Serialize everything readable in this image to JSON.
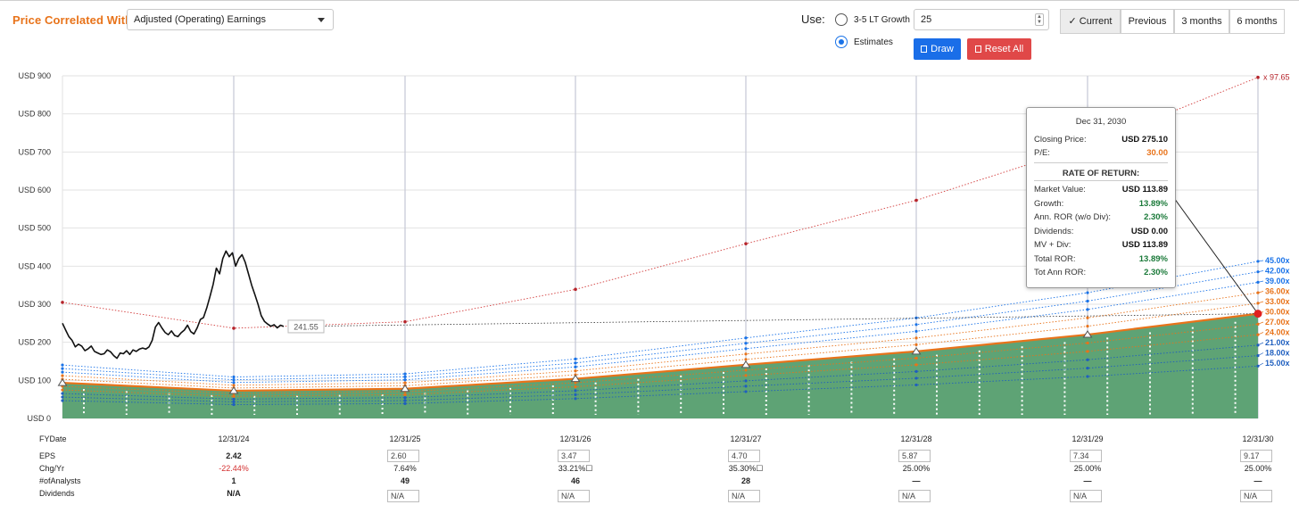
{
  "header": {
    "price_correlated_label": "Price Correlated With",
    "select_value": "Adjusted (Operating) Earnings",
    "use_label": "Use:",
    "radio_growth_label": "3-5 LT Growth",
    "radio_estimates_label": "Estimates",
    "input_value": "25",
    "draw_label": "Draw",
    "reset_label": "Reset All",
    "period_tabs": [
      {
        "label": "Current",
        "checkmark": "✓",
        "active": true
      },
      {
        "label": "Previous",
        "active": false
      },
      {
        "label": "3 months",
        "active": false
      },
      {
        "label": "6 months",
        "active": false
      }
    ]
  },
  "tooltip": {
    "date": "Dec 31, 2030",
    "closing_price_label": "Closing Price:",
    "closing_price_value": "USD 275.10",
    "pe_label": "P/E:",
    "pe_value": "30.00",
    "ror_heading": "RATE OF RETURN:",
    "rows": [
      {
        "label": "Market Value:",
        "value": "USD 113.89",
        "color": "#111111"
      },
      {
        "label": "Growth:",
        "value": "13.89%",
        "color": "#1b7a3a"
      },
      {
        "label": "Ann. ROR (w/o Div):",
        "value": "2.30%",
        "color": "#1b7a3a"
      },
      {
        "label": "Dividends:",
        "value": "USD 0.00",
        "color": "#111111"
      },
      {
        "label": "MV + Div:",
        "value": "USD 113.89",
        "color": "#111111"
      },
      {
        "label": "Total ROR:",
        "value": "13.89%",
        "color": "#1b7a3a"
      },
      {
        "label": "Tot Ann ROR:",
        "value": "2.30%",
        "color": "#1b7a3a"
      }
    ]
  },
  "table": {
    "row_labels": [
      "FYDate",
      "EPS",
      "Chg/Yr",
      "#ofAnalysts",
      "Dividends"
    ],
    "columns": [
      {
        "date": "12/31/24",
        "eps": "2.42",
        "eps_input": false,
        "chg": "-22.44%",
        "chg_neg": true,
        "chg_flag": "",
        "analysts": "1",
        "dividends": "N/A",
        "div_input": false
      },
      {
        "date": "12/31/25",
        "eps": "2.60",
        "eps_input": true,
        "chg": "7.64%",
        "chg_neg": false,
        "chg_flag": "",
        "analysts": "49",
        "dividends": "N/A",
        "div_input": true
      },
      {
        "date": "12/31/26",
        "eps": "3.47",
        "eps_input": true,
        "chg": "33.21%",
        "chg_neg": false,
        "chg_flag": "☐",
        "analysts": "46",
        "dividends": "N/A",
        "div_input": true
      },
      {
        "date": "12/31/27",
        "eps": "4.70",
        "eps_input": true,
        "chg": "35.30%",
        "chg_neg": false,
        "chg_flag": "☐",
        "analysts": "28",
        "dividends": "N/A",
        "div_input": true
      },
      {
        "date": "12/31/28",
        "eps": "5.87",
        "eps_input": true,
        "chg": "25.00%",
        "chg_neg": false,
        "chg_flag": "",
        "analysts": "—",
        "dividends": "N/A",
        "div_input": true
      },
      {
        "date": "12/31/29",
        "eps": "7.34",
        "eps_input": true,
        "chg": "25.00%",
        "chg_neg": false,
        "chg_flag": "",
        "analysts": "—",
        "dividends": "N/A",
        "div_input": true
      },
      {
        "date": "12/31/30",
        "eps": "9.17",
        "eps_input": true,
        "chg": "25.00%",
        "chg_neg": false,
        "chg_flag": "",
        "analysts": "—",
        "dividends": "N/A",
        "div_input": true
      }
    ]
  },
  "chart_data": {
    "type": "area",
    "x_dates": [
      "12/31/24",
      "12/31/25",
      "12/31/26",
      "12/31/27",
      "12/31/28",
      "12/31/29",
      "12/31/30"
    ],
    "x_start": "Dec 2023",
    "ylim": [
      0,
      900
    ],
    "y_ticks": [
      0,
      100,
      200,
      300,
      400,
      500,
      600,
      700,
      800,
      900
    ],
    "y_tick_labels": [
      "USD 0",
      "USD 100",
      "USD 200",
      "USD 300",
      "USD 400",
      "USD 500",
      "USD 600",
      "USD 700",
      "USD 800",
      "USD 900"
    ],
    "pe_multiples": [
      15,
      18,
      21,
      24,
      27,
      30,
      33,
      36,
      39,
      42,
      45
    ],
    "pe_labels": [
      "15.00x",
      "18.00x",
      "21.00x",
      "24.00x",
      "27.00x",
      "30.00x",
      "33.00x",
      "36.00x",
      "39.00x",
      "42.00x",
      "45.00x"
    ],
    "selected_pe": 30,
    "eps_series": [
      {
        "x": "Dec 2023",
        "eps": 3.12
      },
      {
        "x": "12/31/24",
        "eps": 2.42
      },
      {
        "x": "12/31/25",
        "eps": 2.6
      },
      {
        "x": "12/31/26",
        "eps": 3.47
      },
      {
        "x": "12/31/27",
        "eps": 4.7
      },
      {
        "x": "12/31/28",
        "eps": 5.87
      },
      {
        "x": "12/31/29",
        "eps": 7.34
      },
      {
        "x": "12/31/30",
        "eps": 9.17
      }
    ],
    "colors": {
      "valuation_area": "#5ea375",
      "selected_line": "#e8731a",
      "upper_pe": "#1a73e8",
      "lower_pe": "#1f5fbf",
      "highlow": "#d23c3c",
      "price": "#111111"
    },
    "high_pe_series": {
      "label": "x 97.65",
      "points": [
        {
          "x": "Dec 2023",
          "y": 305
        },
        {
          "x": "12/31/24",
          "y": 237
        },
        {
          "x": "12/31/25",
          "y": 254
        },
        {
          "x": "12/31/26",
          "y": 339
        },
        {
          "x": "12/31/27",
          "y": 459
        },
        {
          "x": "12/31/28",
          "y": 573
        },
        {
          "x": "12/31/29",
          "y": 717
        },
        {
          "x": "12/31/30",
          "y": 896
        }
      ]
    },
    "price_series": {
      "last_price_label": "241.55",
      "values": [
        250,
        232,
        215,
        205,
        188,
        195,
        190,
        178,
        183,
        190,
        176,
        172,
        168,
        170,
        180,
        175,
        165,
        158,
        172,
        170,
        178,
        168,
        180,
        176,
        182,
        185,
        182,
        188,
        205,
        240,
        252,
        238,
        226,
        220,
        230,
        218,
        215,
        225,
        232,
        245,
        228,
        222,
        238,
        260,
        265,
        290,
        320,
        352,
        395,
        380,
        420,
        440,
        425,
        435,
        400,
        420,
        430,
        410,
        380,
        350,
        325,
        300,
        270,
        255,
        248,
        242,
        246,
        238,
        245,
        241.55
      ],
      "end": "Jan 2025"
    },
    "last_price_projection": {
      "start": 241.55,
      "end": 275.1
    }
  }
}
